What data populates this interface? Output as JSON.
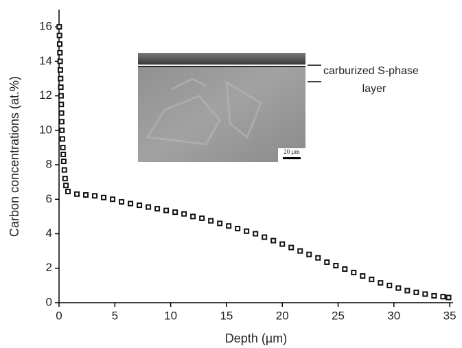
{
  "chart_data": {
    "type": "scatter",
    "x_label": "Depth (µm)",
    "y_label": "Carbon concentrations (at.%)",
    "x": [
      0.02,
      0.04,
      0.06,
      0.08,
      0.1,
      0.12,
      0.14,
      0.16,
      0.18,
      0.2,
      0.22,
      0.24,
      0.26,
      0.3,
      0.34,
      0.38,
      0.42,
      0.48,
      0.54,
      0.62,
      0.8,
      1.6,
      2.4,
      3.2,
      4.0,
      4.8,
      5.6,
      6.4,
      7.2,
      8.0,
      8.8,
      9.6,
      10.4,
      11.2,
      12.0,
      12.8,
      13.6,
      14.4,
      15.2,
      16.0,
      16.8,
      17.6,
      18.4,
      19.2,
      20.0,
      20.8,
      21.6,
      22.4,
      23.2,
      24.0,
      24.8,
      25.6,
      26.4,
      27.2,
      28.0,
      28.8,
      29.6,
      30.4,
      31.2,
      32.0,
      32.8,
      33.6,
      34.4,
      34.9
    ],
    "values": [
      16.0,
      15.5,
      15.0,
      14.5,
      14.0,
      13.5,
      13.0,
      12.5,
      12.0,
      11.5,
      11.0,
      10.5,
      10.0,
      9.5,
      9.0,
      8.6,
      8.2,
      7.7,
      7.2,
      6.8,
      6.45,
      6.3,
      6.25,
      6.2,
      6.1,
      6.0,
      5.85,
      5.75,
      5.65,
      5.55,
      5.45,
      5.35,
      5.25,
      5.15,
      5.0,
      4.9,
      4.75,
      4.6,
      4.45,
      4.3,
      4.15,
      4.0,
      3.8,
      3.6,
      3.4,
      3.2,
      3.0,
      2.8,
      2.6,
      2.35,
      2.15,
      1.95,
      1.75,
      1.55,
      1.35,
      1.15,
      1.0,
      0.85,
      0.7,
      0.6,
      0.5,
      0.4,
      0.35,
      0.3
    ],
    "color": "#111111",
    "xlim": [
      0,
      35.3
    ],
    "ylim": [
      0,
      17
    ],
    "xticks": [
      0,
      5,
      10,
      15,
      20,
      25,
      30,
      35
    ],
    "yticks": [
      0,
      2,
      4,
      6,
      8,
      10,
      12,
      14,
      16
    ],
    "annotations": [
      "carburized S-phase",
      "layer",
      "20 µm"
    ]
  }
}
